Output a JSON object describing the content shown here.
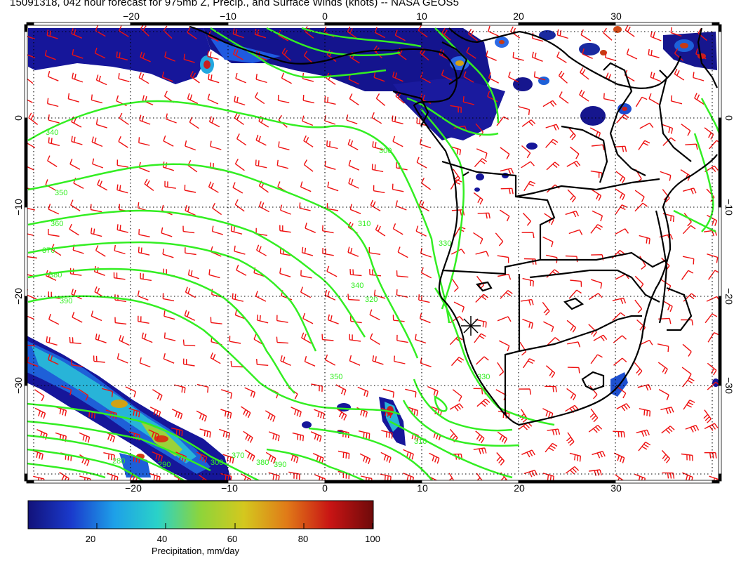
{
  "title": "15091318, 042 hour forecast for 975mb Z, Precip., and Surface Winds (knots) -- NASA GEOS5",
  "map": {
    "lon_labels": [
      "−20",
      "−10",
      "0",
      "10",
      "20",
      "30"
    ],
    "lat_labels": [
      "0",
      "−10",
      "−20",
      "−30"
    ],
    "contour_color": "#33ee22",
    "barb_color": "#ee1111",
    "coast_color": "#000000",
    "contour_labels": [
      "340",
      "350",
      "360",
      "370",
      "380",
      "390",
      "300",
      "310",
      "320",
      "330",
      "340",
      "350",
      "330",
      "310",
      "280",
      "290",
      "300",
      "370",
      "380",
      "390"
    ]
  },
  "colorbar": {
    "title": "Precipitation, mm/day",
    "ticks": [
      "20",
      "40",
      "60",
      "80",
      "100"
    ],
    "colors": [
      "#12127a",
      "#1a3acc",
      "#1ea0e8",
      "#2ad2c8",
      "#8ed43a",
      "#d4c81e",
      "#e07a18",
      "#c81414",
      "#6e0a0a"
    ]
  }
}
